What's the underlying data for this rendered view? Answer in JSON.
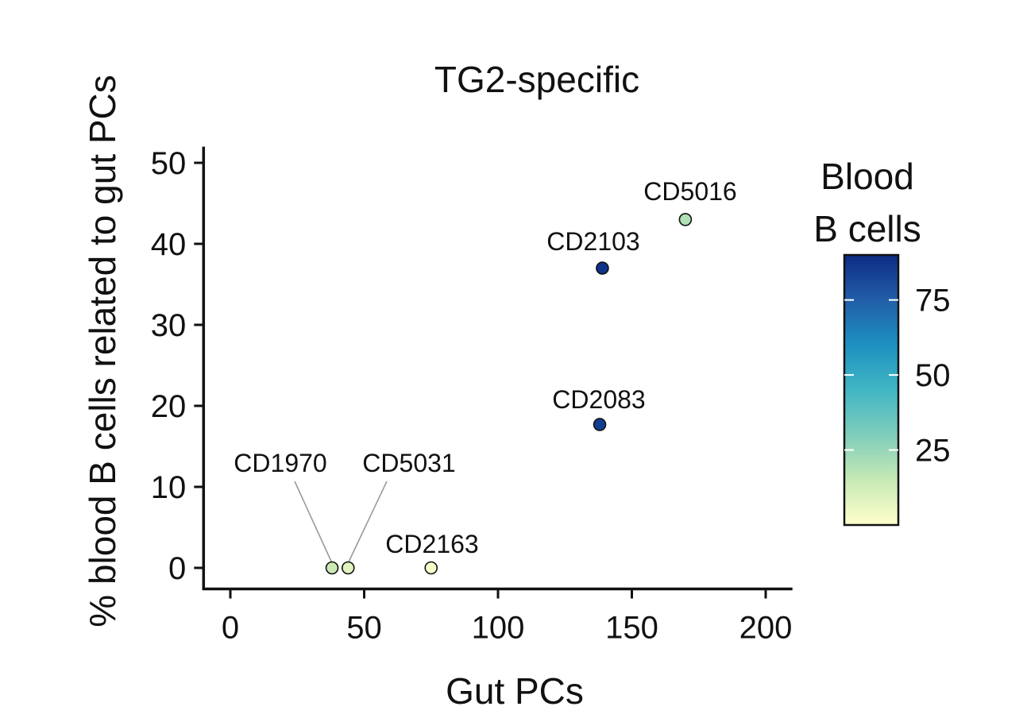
{
  "chart_data": {
    "type": "scatter",
    "title": "TG2-specific",
    "xlabel": "Gut PCs",
    "ylabel": "% blood B cells related to gut PCs",
    "xlim": [
      -10,
      210
    ],
    "ylim": [
      -2.6,
      52
    ],
    "xticks": [
      0,
      50,
      100,
      150,
      200
    ],
    "yticks": [
      0,
      10,
      20,
      30,
      40,
      50
    ],
    "grid": false,
    "points": [
      {
        "label": "CD5016",
        "x": 170,
        "y": 43,
        "blood_b_cells": 20
      },
      {
        "label": "CD2103",
        "x": 139,
        "y": 37,
        "blood_b_cells": 88
      },
      {
        "label": "CD2083",
        "x": 138,
        "y": 17.7,
        "blood_b_cells": 85
      },
      {
        "label": "CD1970",
        "x": 38,
        "y": 0,
        "blood_b_cells": 14
      },
      {
        "label": "CD5031",
        "x": 44,
        "y": 0,
        "blood_b_cells": 8
      },
      {
        "label": "CD2163",
        "x": 75,
        "y": 0,
        "blood_b_cells": 2
      }
    ],
    "colorbar": {
      "title_line1": "Blood",
      "title_line2": "B cells",
      "min": 0,
      "max": 90,
      "ticks": [
        25,
        50,
        75
      ],
      "colors": [
        "#ffffcc",
        "#c7e9b4",
        "#7fcdbb",
        "#41b6c4",
        "#1d91c0",
        "#225ea8",
        "#0c2c84"
      ]
    }
  }
}
